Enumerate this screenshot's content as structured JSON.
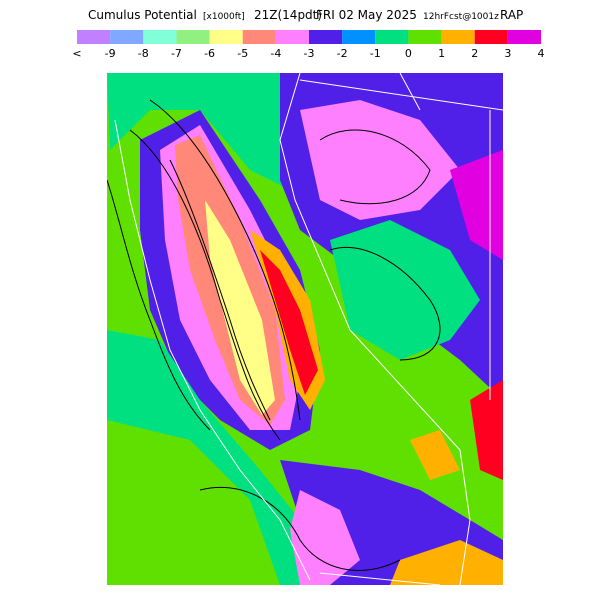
{
  "header": {
    "title": "Cumulus Potential",
    "units": "[x1000ft]",
    "valid_time": "21Z(14pdt)",
    "date": "FRI 02 May 2025",
    "forecast": "12hrFcst@1001z",
    "model": "RAP"
  },
  "colorbar": {
    "labels": [
      "<",
      "-9",
      "-8",
      "-7",
      "-6",
      "-5",
      "-4",
      "-3",
      "-2",
      "-1",
      "0",
      "1",
      "2",
      "3",
      "4"
    ],
    "colors": [
      "#c080ff",
      "#80a8ff",
      "#80ffd8",
      "#90f080",
      "#ffff88",
      "#ff8878",
      "#ff80ff",
      "#5020e8",
      "#0090ff",
      "#00e080",
      "#60e000",
      "#ffb000",
      "#ff0020",
      "#e000e0"
    ]
  }
}
